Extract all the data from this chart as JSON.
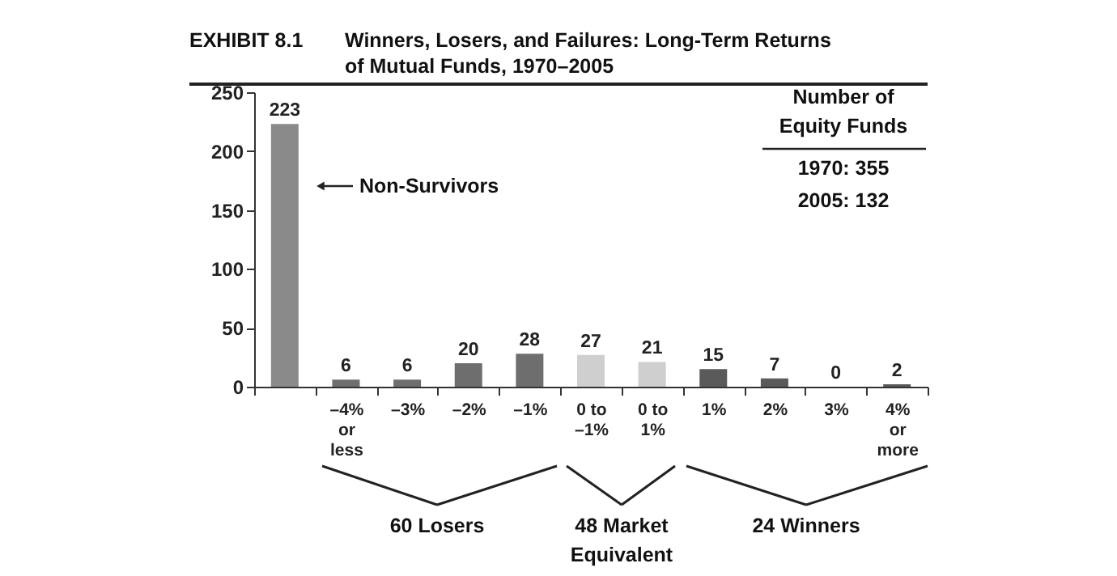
{
  "chart_data": {
    "type": "bar",
    "title": "EXHIBIT 8.1",
    "subtitle": "Winners, Losers, and Failures: Long-Term Returns of Mutual Funds, 1970–2005",
    "categories": [
      null,
      "–4% or less",
      "–3%",
      "–2%",
      "–1%",
      "0 to –1%",
      "0 to 1%",
      "1%",
      "2%",
      "3%",
      "4% or more"
    ],
    "values": [
      223,
      6,
      6,
      20,
      28,
      27,
      21,
      15,
      7,
      0,
      2
    ],
    "colors": [
      "#8a8a8a",
      "#6e6e6e",
      "#6e6e6e",
      "#6e6e6e",
      "#6e6e6e",
      "#cfcfcf",
      "#cfcfcf",
      "#5a5a5a",
      "#5a5a5a",
      "#5a5a5a",
      "#5a5a5a"
    ],
    "ylim": [
      0,
      250
    ],
    "yticks": [
      0,
      50,
      100,
      150,
      200,
      250
    ],
    "grid": false,
    "data_labels": true,
    "annotations": [
      "Non-Survivors",
      "Number of Equity Funds",
      "1970: 355",
      "2005: 132",
      "60 Losers",
      "48 Market Equivalent",
      "24 Winners"
    ]
  }
}
